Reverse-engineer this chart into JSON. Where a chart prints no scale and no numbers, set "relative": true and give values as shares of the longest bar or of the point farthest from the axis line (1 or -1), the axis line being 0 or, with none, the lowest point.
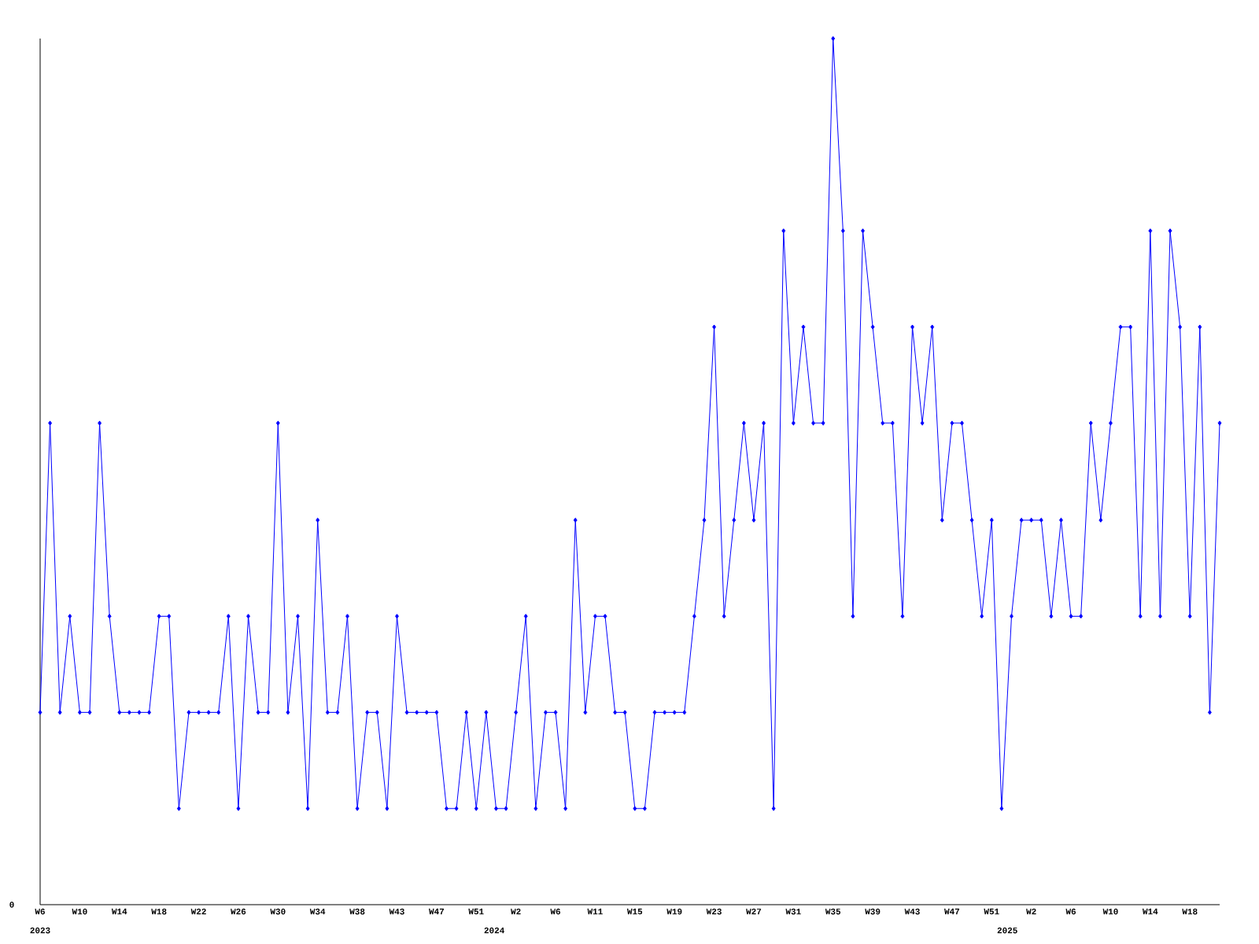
{
  "chart_data": {
    "type": "line",
    "relative": true,
    "color": "#0000ff",
    "marker": "diamond",
    "grid": false,
    "categories": [
      "W6",
      null,
      null,
      null,
      "W10",
      null,
      null,
      null,
      "W14",
      null,
      null,
      null,
      "W18",
      null,
      null,
      null,
      "W22",
      null,
      null,
      null,
      "W26",
      null,
      null,
      null,
      "W30",
      null,
      null,
      null,
      "W34",
      null,
      null,
      null,
      "W38",
      null,
      null,
      null,
      "W43",
      null,
      null,
      null,
      "W47",
      null,
      null,
      null,
      "W51",
      null,
      null,
      null,
      "W2",
      null,
      null,
      null,
      "W6",
      null,
      null,
      null,
      "W11",
      null,
      null,
      null,
      "W15",
      null,
      null,
      null,
      "W19",
      null,
      null,
      null,
      "W23",
      null,
      null,
      null,
      "W27",
      null,
      null,
      null,
      "W31",
      null,
      null,
      null,
      "W35",
      null,
      null,
      null,
      "W39",
      null,
      null,
      null,
      "W43",
      null,
      null,
      null,
      "W47",
      null,
      null,
      null,
      "W51",
      null,
      null,
      null,
      "W2",
      null,
      null,
      null,
      "W6",
      null,
      null,
      null,
      "W10",
      null,
      null,
      null,
      "W14",
      null,
      null,
      null,
      "W18",
      null,
      null,
      null
    ],
    "values": [
      0.222,
      0.556,
      0.222,
      0.333,
      0.222,
      0.222,
      0.556,
      0.333,
      0.222,
      0.222,
      0.222,
      0.222,
      0.333,
      0.333,
      0.111,
      0.222,
      0.222,
      0.222,
      0.222,
      0.333,
      0.111,
      0.333,
      0.222,
      0.222,
      0.556,
      0.222,
      0.333,
      0.111,
      0.444,
      0.222,
      0.222,
      0.333,
      0.111,
      0.222,
      0.222,
      0.111,
      0.333,
      0.222,
      0.222,
      0.222,
      0.222,
      0.111,
      0.111,
      0.222,
      0.111,
      0.222,
      0.111,
      0.111,
      0.222,
      0.333,
      0.111,
      0.222,
      0.222,
      0.111,
      0.444,
      0.222,
      0.333,
      0.333,
      0.222,
      0.222,
      0.111,
      0.111,
      0.222,
      0.222,
      0.222,
      0.222,
      0.333,
      0.444,
      0.667,
      0.333,
      0.444,
      0.556,
      0.444,
      0.556,
      0.111,
      0.778,
      0.556,
      0.667,
      0.556,
      0.556,
      1,
      0.778,
      0.333,
      0.778,
      0.667,
      0.556,
      0.556,
      0.333,
      0.667,
      0.556,
      0.667,
      0.444,
      0.556,
      0.556,
      0.444,
      0.333,
      0.444,
      0.111,
      0.333,
      0.444,
      0.444,
      0.444,
      0.333,
      0.444,
      0.333,
      0.333,
      0.556,
      0.444,
      0.556,
      0.667,
      0.667,
      0.333,
      0.778,
      0.333,
      0.778,
      0.667,
      0.333,
      0.667,
      0.222,
      0.556
    ],
    "annotations": [
      "0",
      "2023",
      "2024",
      "2025"
    ]
  }
}
